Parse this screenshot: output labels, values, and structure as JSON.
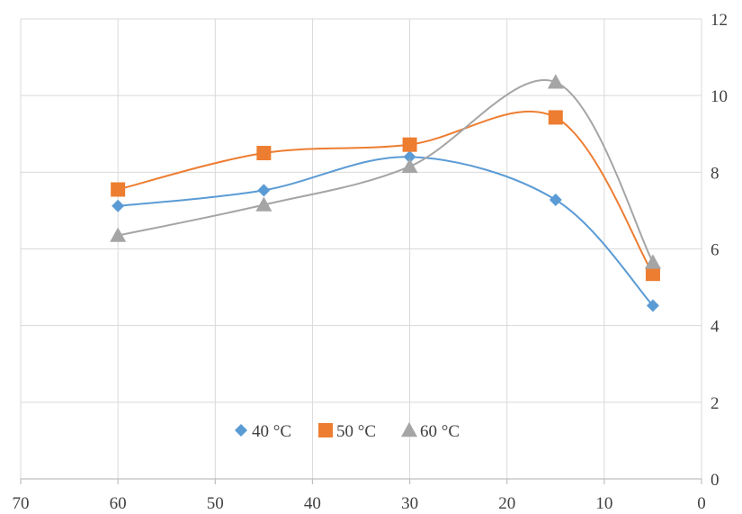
{
  "chart_data": {
    "type": "scatter",
    "title": "",
    "xlabel": "",
    "ylabel": "",
    "xlim": [
      0,
      70
    ],
    "x_reversed": true,
    "ylim": [
      0,
      12
    ],
    "y_axis_position": "right",
    "grid": true,
    "legend_position": "bottom-center",
    "line_style": "smooth",
    "x_ticks": [
      70,
      60,
      50,
      40,
      30,
      20,
      10,
      0
    ],
    "y_ticks": [
      0,
      2,
      4,
      6,
      8,
      10,
      12
    ],
    "x_tick_labels": [
      "70",
      "60",
      "50",
      "40",
      "30",
      "20",
      "10",
      "0"
    ],
    "y_tick_labels": [
      "0",
      "2",
      "4",
      "6",
      "8",
      "10",
      "12"
    ],
    "series": [
      {
        "name": "40 °C",
        "color": "#5b9bd5",
        "marker": "diamond",
        "x": [
          60,
          45,
          30,
          15,
          5
        ],
        "y": [
          7.12,
          7.53,
          8.4,
          7.28,
          4.52
        ]
      },
      {
        "name": "50 °C",
        "color": "#ed7d31",
        "marker": "square",
        "x": [
          60,
          45,
          30,
          15,
          5
        ],
        "y": [
          7.55,
          8.5,
          8.72,
          9.43,
          5.35
        ]
      },
      {
        "name": "60 °C",
        "color": "#a5a5a5",
        "marker": "triangle",
        "x": [
          60,
          45,
          30,
          15,
          5
        ],
        "y": [
          6.35,
          7.15,
          8.15,
          10.35,
          5.65
        ]
      }
    ]
  }
}
